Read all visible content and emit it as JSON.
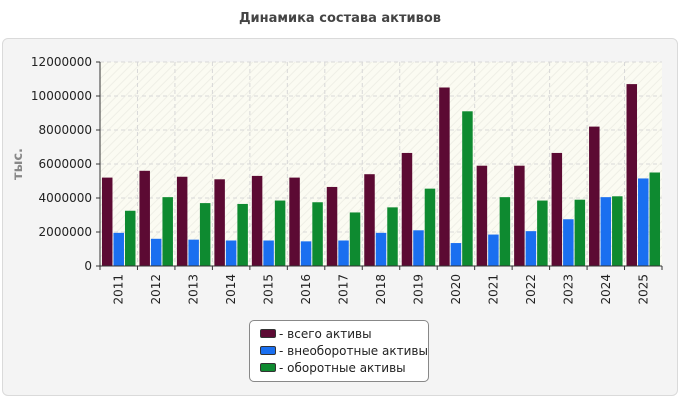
{
  "chart_data": {
    "type": "bar",
    "title": "Динамика состава активов",
    "ylabel": "тыс.",
    "xlabel": "",
    "ylim": [
      0,
      12000000
    ],
    "yticks": [
      0,
      2000000,
      4000000,
      6000000,
      8000000,
      10000000,
      12000000
    ],
    "grid": true,
    "legend_position": "bottom",
    "categories": [
      "2011",
      "2012",
      "2013",
      "2014",
      "2015",
      "2016",
      "2017",
      "2018",
      "2019",
      "2020",
      "2021",
      "2022",
      "2023",
      "2024",
      "2025"
    ],
    "series": [
      {
        "name": "- всего активы",
        "color": "#5c0a33",
        "values": [
          5200000,
          5600000,
          5250000,
          5100000,
          5300000,
          5200000,
          4650000,
          5400000,
          6650000,
          10500000,
          5900000,
          5900000,
          6650000,
          8200000,
          10700000
        ]
      },
      {
        "name": "- внеоборотные активы",
        "color": "#1a6ff0",
        "values": [
          1950000,
          1600000,
          1550000,
          1500000,
          1500000,
          1450000,
          1500000,
          1950000,
          2100000,
          1350000,
          1850000,
          2050000,
          2750000,
          4050000,
          5150000
        ]
      },
      {
        "name": "- оборотные активы",
        "color": "#0e8a30",
        "values": [
          3250000,
          4050000,
          3700000,
          3650000,
          3850000,
          3750000,
          3150000,
          3450000,
          4550000,
          9100000,
          4050000,
          3850000,
          3900000,
          4100000,
          5500000
        ]
      }
    ]
  }
}
